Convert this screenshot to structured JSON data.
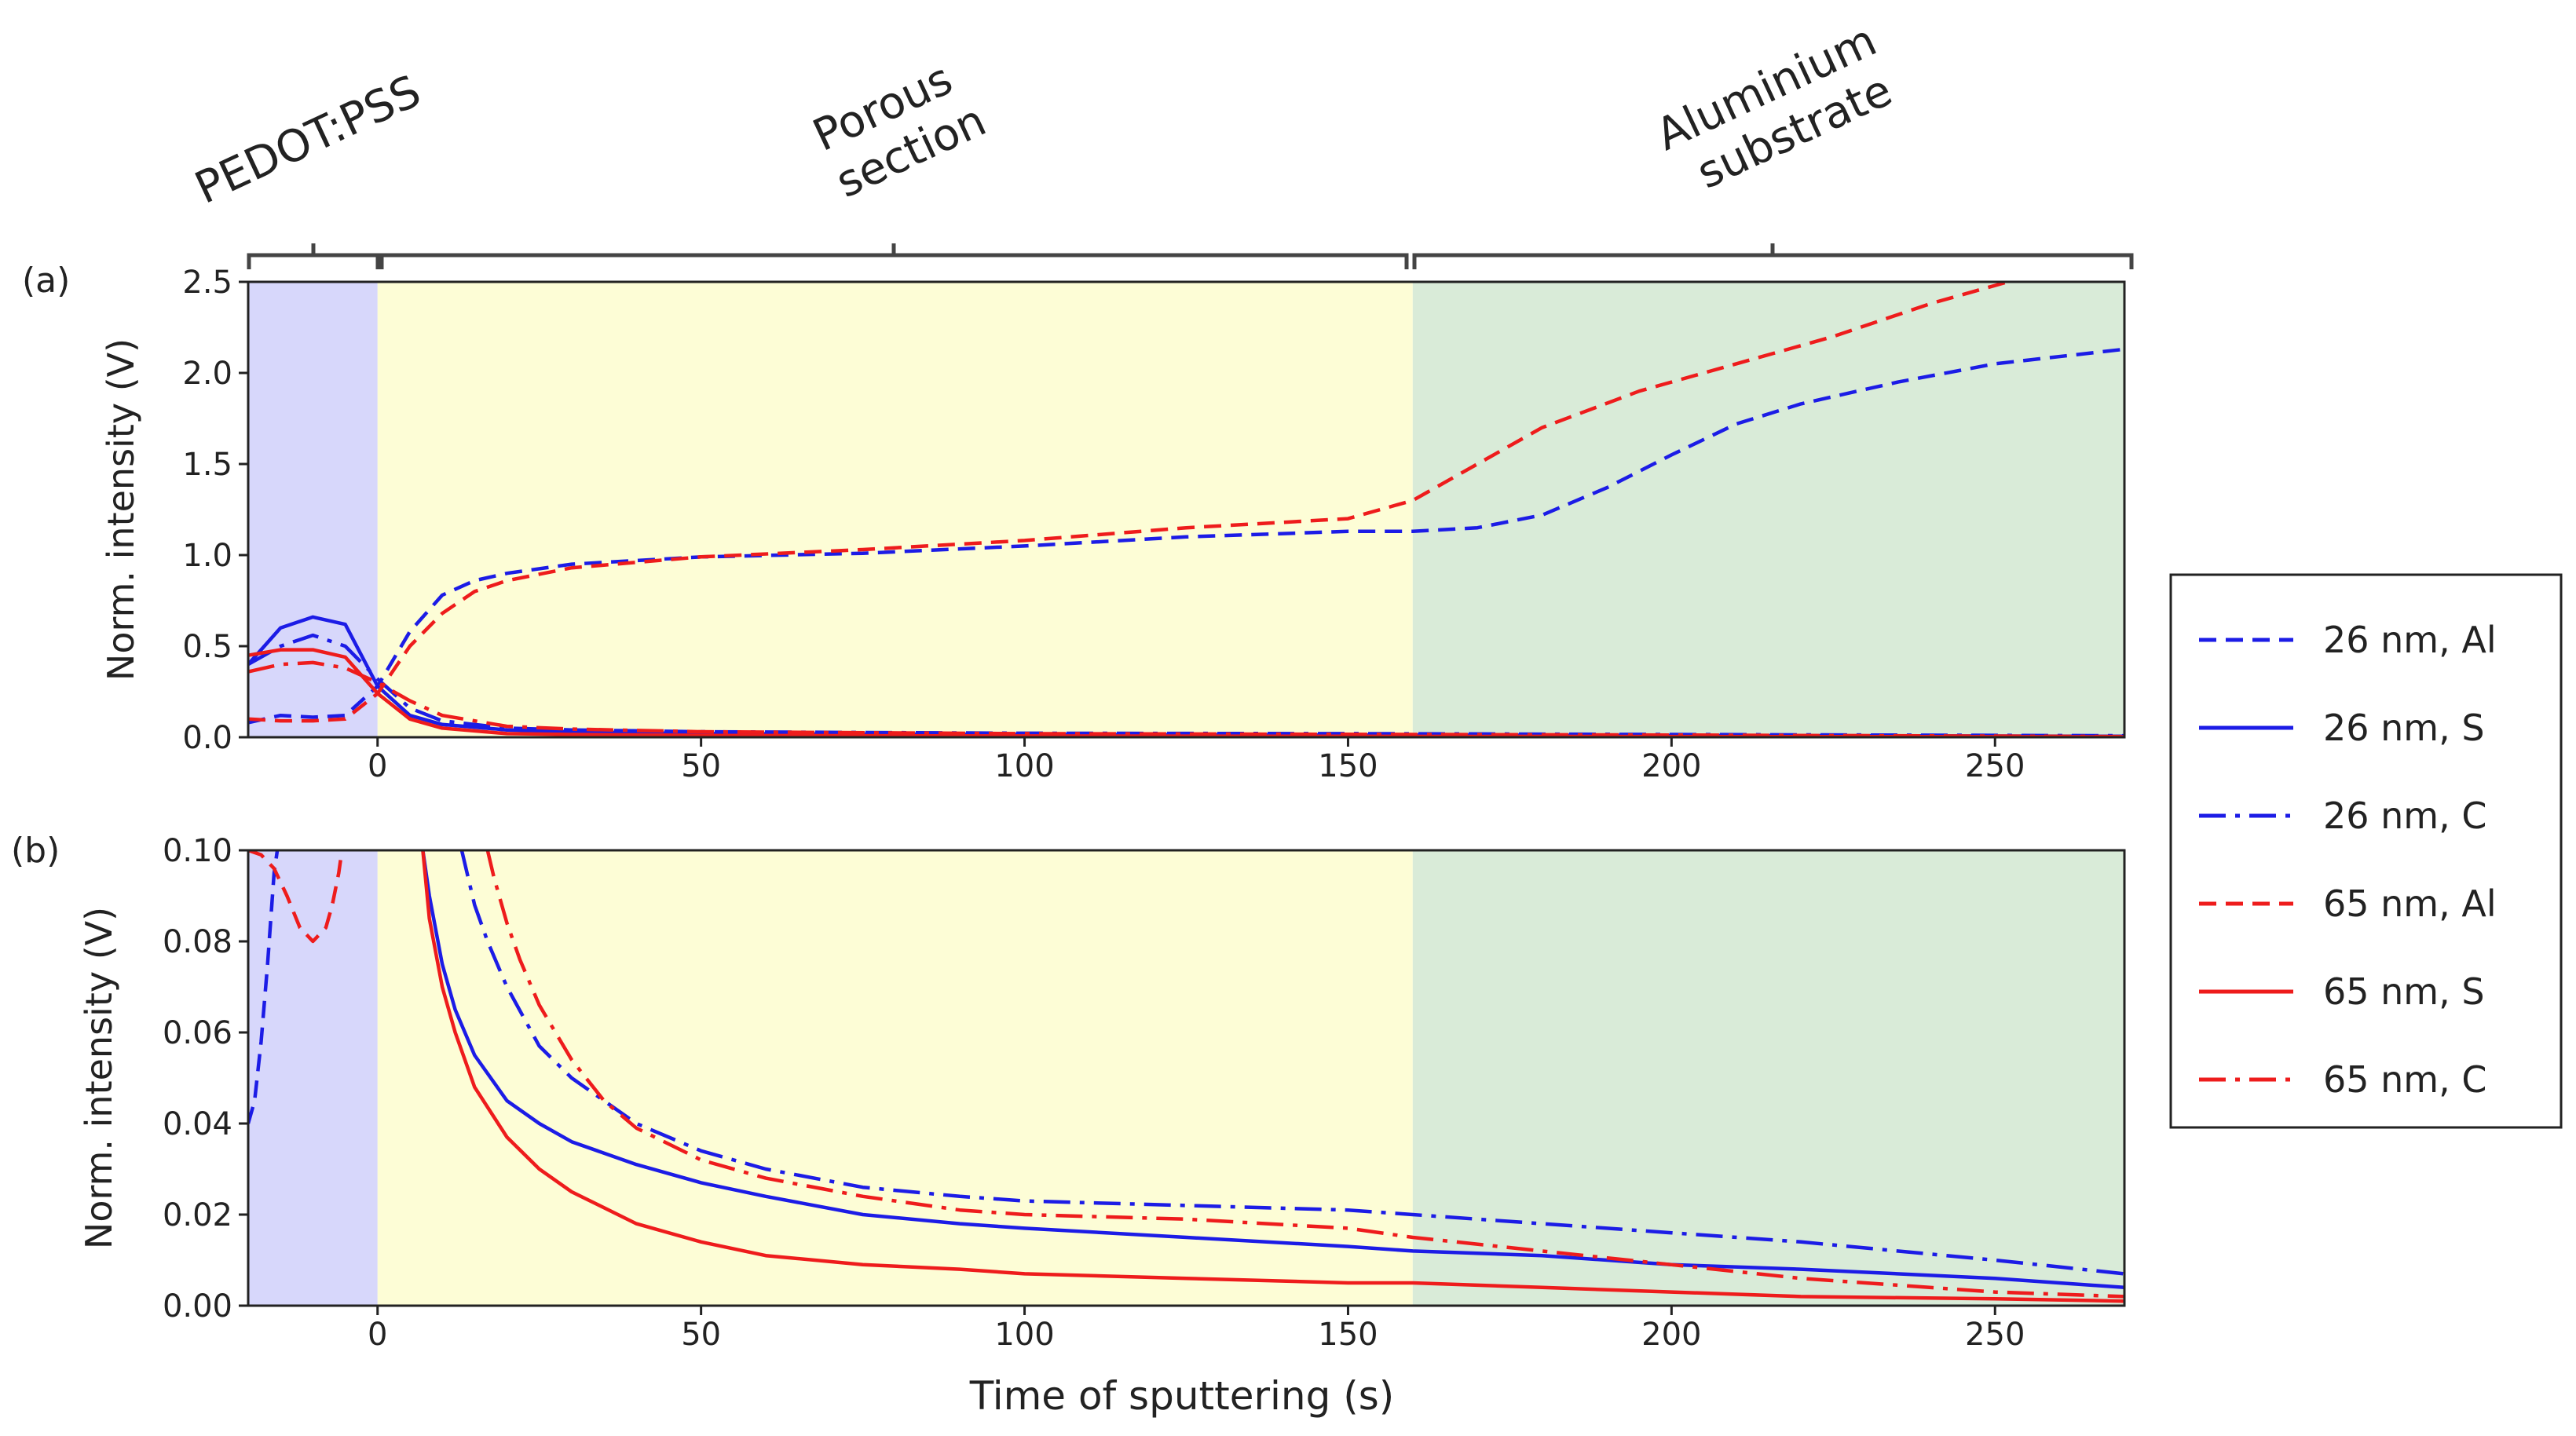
{
  "figure": {
    "regions": [
      {
        "label_lines": [
          "PEDOT:PSS"
        ],
        "x_start": -20,
        "x_end": 0,
        "color": "#d7d7fb"
      },
      {
        "label_lines": [
          "Porous",
          "section"
        ],
        "x_start": 0,
        "x_end": 160,
        "color": "#fdfdd6"
      },
      {
        "label_lines": [
          "Aluminium",
          "substrate"
        ],
        "x_start": 160,
        "x_end": 270,
        "color": "#d9ebd8"
      }
    ],
    "xlabel": "Time of sputtering (s)"
  },
  "legend": {
    "placement": "right",
    "entries": [
      {
        "label": "26 nm, Al",
        "color": "#1c1ce6",
        "style": "dashed"
      },
      {
        "label": "26 nm, S",
        "color": "#1c1ce6",
        "style": "solid"
      },
      {
        "label": "26 nm, C",
        "color": "#1c1ce6",
        "style": "dashdot"
      },
      {
        "label": "65 nm, Al",
        "color": "#ee1c1c",
        "style": "dashed"
      },
      {
        "label": "65 nm, S",
        "color": "#ee1c1c",
        "style": "solid"
      },
      {
        "label": "65 nm, C",
        "color": "#ee1c1c",
        "style": "dashdot"
      }
    ]
  },
  "chart_data": [
    {
      "panel": "(a)",
      "type": "line",
      "xlabel": "",
      "ylabel": "Norm. intensity (V)",
      "xlim": [
        -20,
        270
      ],
      "ylim": [
        0,
        2.5
      ],
      "xticks": [
        0,
        50,
        100,
        150,
        200,
        250
      ],
      "yticks": [
        "0.0",
        "0.5",
        "1.0",
        "1.5",
        "2.0",
        "2.5"
      ],
      "series": [
        {
          "name": "26 nm, Al",
          "x": [
            -20,
            -15,
            -10,
            -5,
            0,
            5,
            10,
            15,
            20,
            30,
            50,
            75,
            100,
            125,
            150,
            160,
            170,
            180,
            190,
            200,
            210,
            220,
            235,
            250,
            270
          ],
          "y": [
            0.08,
            0.12,
            0.11,
            0.12,
            0.28,
            0.58,
            0.78,
            0.86,
            0.9,
            0.95,
            0.99,
            1.01,
            1.05,
            1.1,
            1.13,
            1.13,
            1.15,
            1.22,
            1.37,
            1.55,
            1.72,
            1.83,
            1.95,
            2.05,
            2.13
          ]
        },
        {
          "name": "26 nm, S",
          "x": [
            -20,
            -15,
            -10,
            -5,
            0,
            5,
            10,
            20,
            30,
            50,
            100,
            150,
            200,
            270
          ],
          "y": [
            0.4,
            0.6,
            0.66,
            0.62,
            0.28,
            0.12,
            0.07,
            0.04,
            0.03,
            0.02,
            0.015,
            0.012,
            0.01,
            0.005
          ]
        },
        {
          "name": "26 nm, C",
          "x": [
            -20,
            -15,
            -10,
            -5,
            0,
            5,
            10,
            20,
            30,
            50,
            100,
            150,
            200,
            270
          ],
          "y": [
            0.4,
            0.5,
            0.56,
            0.5,
            0.32,
            0.16,
            0.09,
            0.05,
            0.04,
            0.03,
            0.022,
            0.02,
            0.015,
            0.008
          ]
        },
        {
          "name": "65 nm, Al",
          "x": [
            -20,
            -15,
            -10,
            -5,
            0,
            5,
            10,
            15,
            20,
            30,
            50,
            75,
            100,
            125,
            150,
            160,
            170,
            180,
            195,
            210,
            225,
            240,
            252
          ],
          "y": [
            0.1,
            0.09,
            0.09,
            0.1,
            0.24,
            0.5,
            0.68,
            0.8,
            0.86,
            0.93,
            0.99,
            1.03,
            1.08,
            1.15,
            1.2,
            1.3,
            1.5,
            1.7,
            1.9,
            2.05,
            2.2,
            2.38,
            2.5
          ]
        },
        {
          "name": "65 nm, S",
          "x": [
            -20,
            -15,
            -10,
            -5,
            0,
            5,
            10,
            20,
            30,
            50,
            100,
            150,
            200,
            270
          ],
          "y": [
            0.45,
            0.48,
            0.48,
            0.44,
            0.24,
            0.1,
            0.05,
            0.02,
            0.015,
            0.01,
            0.007,
            0.005,
            0.004,
            0.002
          ]
        },
        {
          "name": "65 nm, C",
          "x": [
            -20,
            -15,
            -10,
            -5,
            0,
            5,
            10,
            20,
            30,
            50,
            100,
            150,
            200,
            270
          ],
          "y": [
            0.36,
            0.4,
            0.41,
            0.38,
            0.3,
            0.2,
            0.12,
            0.06,
            0.045,
            0.03,
            0.02,
            0.016,
            0.012,
            0.004
          ]
        }
      ]
    },
    {
      "panel": "(b)",
      "type": "line",
      "xlabel": "Time of sputtering (s)",
      "ylabel": "Norm. intensity (V)",
      "xlim": [
        -20,
        270
      ],
      "ylim": [
        0,
        0.1
      ],
      "xticks": [
        0,
        50,
        100,
        150,
        200,
        250
      ],
      "yticks": [
        "0.00",
        "0.02",
        "0.04",
        "0.06",
        "0.08",
        "0.10"
      ],
      "series": [
        {
          "name": "26 nm, Al",
          "x": [
            -20,
            -19,
            -18,
            -17,
            -16,
            -15.5
          ],
          "y": [
            0.04,
            0.045,
            0.058,
            0.075,
            0.095,
            0.1
          ]
        },
        {
          "name": "26 nm, S",
          "x": [
            7,
            8,
            10,
            12,
            15,
            20,
            25,
            30,
            40,
            50,
            60,
            75,
            90,
            100,
            125,
            150,
            160,
            180,
            200,
            220,
            250,
            270
          ],
          "y": [
            0.1,
            0.09,
            0.075,
            0.065,
            0.055,
            0.045,
            0.04,
            0.036,
            0.031,
            0.027,
            0.024,
            0.02,
            0.018,
            0.017,
            0.015,
            0.013,
            0.012,
            0.011,
            0.009,
            0.008,
            0.006,
            0.004
          ]
        },
        {
          "name": "26 nm, C",
          "x": [
            13,
            14,
            15,
            17,
            20,
            25,
            30,
            35,
            40,
            50,
            60,
            75,
            90,
            100,
            125,
            150,
            160,
            180,
            200,
            220,
            250,
            270
          ],
          "y": [
            0.1,
            0.094,
            0.088,
            0.08,
            0.07,
            0.057,
            0.05,
            0.045,
            0.04,
            0.034,
            0.03,
            0.026,
            0.024,
            0.023,
            0.022,
            0.021,
            0.02,
            0.018,
            0.016,
            0.014,
            0.01,
            0.007
          ]
        },
        {
          "name": "65 nm, Al",
          "x": [
            -20,
            -18,
            -16,
            -14,
            -12,
            -10,
            -8,
            -7,
            -6,
            -5.5
          ],
          "y": [
            0.1,
            0.099,
            0.096,
            0.09,
            0.083,
            0.08,
            0.083,
            0.088,
            0.095,
            0.1
          ]
        },
        {
          "name": "65 nm, S",
          "x": [
            7,
            8,
            10,
            12,
            15,
            20,
            25,
            30,
            40,
            50,
            60,
            75,
            90,
            100,
            125,
            150,
            160,
            180,
            200,
            220,
            250,
            270
          ],
          "y": [
            0.1,
            0.085,
            0.07,
            0.06,
            0.048,
            0.037,
            0.03,
            0.025,
            0.018,
            0.014,
            0.011,
            0.009,
            0.008,
            0.007,
            0.006,
            0.005,
            0.005,
            0.004,
            0.003,
            0.002,
            0.0015,
            0.001
          ]
        },
        {
          "name": "65 nm, C",
          "x": [
            17,
            18,
            20,
            22,
            25,
            30,
            35,
            40,
            50,
            60,
            75,
            90,
            100,
            125,
            150,
            160,
            180,
            200,
            220,
            250,
            270
          ],
          "y": [
            0.1,
            0.094,
            0.084,
            0.076,
            0.066,
            0.054,
            0.045,
            0.039,
            0.032,
            0.028,
            0.024,
            0.021,
            0.02,
            0.019,
            0.017,
            0.015,
            0.012,
            0.009,
            0.006,
            0.003,
            0.002
          ]
        }
      ]
    }
  ]
}
